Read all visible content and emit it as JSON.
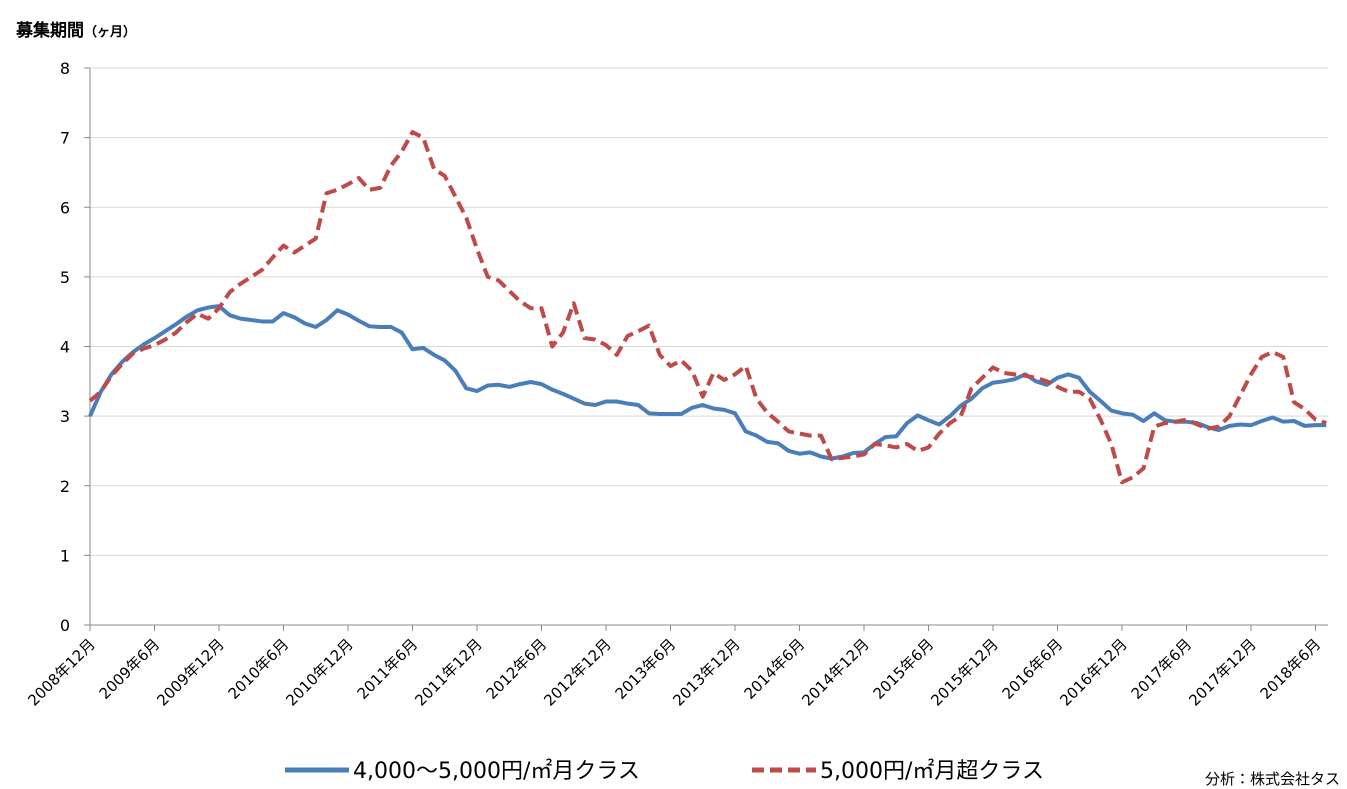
{
  "chart_data": {
    "type": "line",
    "title": "募集期間",
    "unit": "（ヶ月）",
    "source": "分析：株式会社タス",
    "categories": [
      "2008年12月",
      null,
      null,
      null,
      null,
      null,
      "2009年6月",
      null,
      null,
      null,
      null,
      null,
      "2009年12月",
      null,
      null,
      null,
      null,
      null,
      "2010年6月",
      null,
      null,
      null,
      null,
      null,
      "2010年12月",
      null,
      null,
      null,
      null,
      null,
      "2011年6月",
      null,
      null,
      null,
      null,
      null,
      "2011年12月",
      null,
      null,
      null,
      null,
      null,
      "2012年6月",
      null,
      null,
      null,
      null,
      null,
      "2012年12月",
      null,
      null,
      null,
      null,
      null,
      "2013年6月",
      null,
      null,
      null,
      null,
      null,
      "2013年12月",
      null,
      null,
      null,
      null,
      null,
      "2014年6月",
      null,
      null,
      null,
      null,
      null,
      "2014年12月",
      null,
      null,
      null,
      null,
      null,
      "2015年6月",
      null,
      null,
      null,
      null,
      null,
      "2015年12月",
      null,
      null,
      null,
      null,
      null,
      "2016年6月",
      null,
      null,
      null,
      null,
      null,
      "2016年12月",
      null,
      null,
      null,
      null,
      null,
      "2017年6月",
      null,
      null,
      null,
      null,
      null,
      "2017年12月",
      null,
      null,
      null,
      null,
      null,
      "2018年6月",
      null
    ],
    "series": [
      {
        "name": "4,000～5,000円/㎡月クラス",
        "color": "#4a7ebb",
        "dash": false,
        "values": [
          3.0,
          3.35,
          3.6,
          3.78,
          3.92,
          4.03,
          4.12,
          4.22,
          4.32,
          4.43,
          4.52,
          4.56,
          4.58,
          4.45,
          4.4,
          4.38,
          4.36,
          4.36,
          4.48,
          4.42,
          4.33,
          4.28,
          4.38,
          4.52,
          4.46,
          4.37,
          4.29,
          4.28,
          4.28,
          4.2,
          3.96,
          3.98,
          3.88,
          3.8,
          3.65,
          3.4,
          3.36,
          3.44,
          3.45,
          3.42,
          3.46,
          3.49,
          3.46,
          3.38,
          3.32,
          3.25,
          3.18,
          3.16,
          3.21,
          3.21,
          3.18,
          3.16,
          3.04,
          3.03,
          3.03,
          3.03,
          3.12,
          3.16,
          3.11,
          3.09,
          3.04,
          2.78,
          2.72,
          2.63,
          2.61,
          2.5,
          2.46,
          2.48,
          2.42,
          2.39,
          2.42,
          2.47,
          2.48,
          2.6,
          2.7,
          2.71,
          2.9,
          3.01,
          2.94,
          2.88,
          3.0,
          3.15,
          3.25,
          3.4,
          3.48,
          3.5,
          3.53,
          3.6,
          3.5,
          3.45,
          3.55,
          3.6,
          3.55,
          3.35,
          3.22,
          3.08,
          3.04,
          3.02,
          2.93,
          3.04,
          2.94,
          2.92,
          2.92,
          2.9,
          2.84,
          2.8,
          2.86,
          2.88,
          2.87,
          2.93,
          2.98,
          2.92,
          2.93,
          2.86,
          2.87,
          2.87
        ]
      },
      {
        "name": "5,000円/㎡月超クラス",
        "color": "#be4b48",
        "dash": true,
        "values": [
          3.22,
          3.35,
          3.58,
          3.75,
          3.9,
          3.97,
          4.02,
          4.1,
          4.2,
          4.35,
          4.47,
          4.4,
          4.55,
          4.78,
          4.9,
          5.0,
          5.1,
          5.28,
          5.45,
          5.35,
          5.45,
          5.55,
          6.2,
          6.25,
          6.33,
          6.42,
          6.25,
          6.28,
          6.6,
          6.8,
          7.08,
          7.0,
          6.55,
          6.45,
          6.15,
          5.85,
          5.4,
          5.0,
          4.95,
          4.8,
          4.65,
          4.55,
          4.55,
          4.0,
          4.2,
          4.62,
          4.12,
          4.1,
          4.02,
          3.88,
          4.15,
          4.22,
          4.3,
          3.88,
          3.72,
          3.8,
          3.65,
          3.28,
          3.62,
          3.52,
          3.6,
          3.72,
          3.25,
          3.05,
          2.92,
          2.78,
          2.75,
          2.72,
          2.72,
          2.38,
          2.4,
          2.42,
          2.45,
          2.6,
          2.58,
          2.55,
          2.6,
          2.5,
          2.55,
          2.75,
          2.9,
          3.0,
          3.4,
          3.55,
          3.7,
          3.62,
          3.6,
          3.58,
          3.55,
          3.5,
          3.42,
          3.35,
          3.35,
          3.25,
          2.95,
          2.6,
          2.05,
          2.12,
          2.25,
          2.85,
          2.9,
          2.92,
          2.95,
          2.88,
          2.82,
          2.85,
          3.0,
          3.3,
          3.6,
          3.85,
          3.92,
          3.85,
          3.2,
          3.1,
          2.95,
          2.9
        ]
      }
    ],
    "ylim": [
      0,
      8
    ],
    "yticks": [
      0,
      1,
      2,
      3,
      4,
      5,
      6,
      7,
      8
    ],
    "grid": true
  }
}
